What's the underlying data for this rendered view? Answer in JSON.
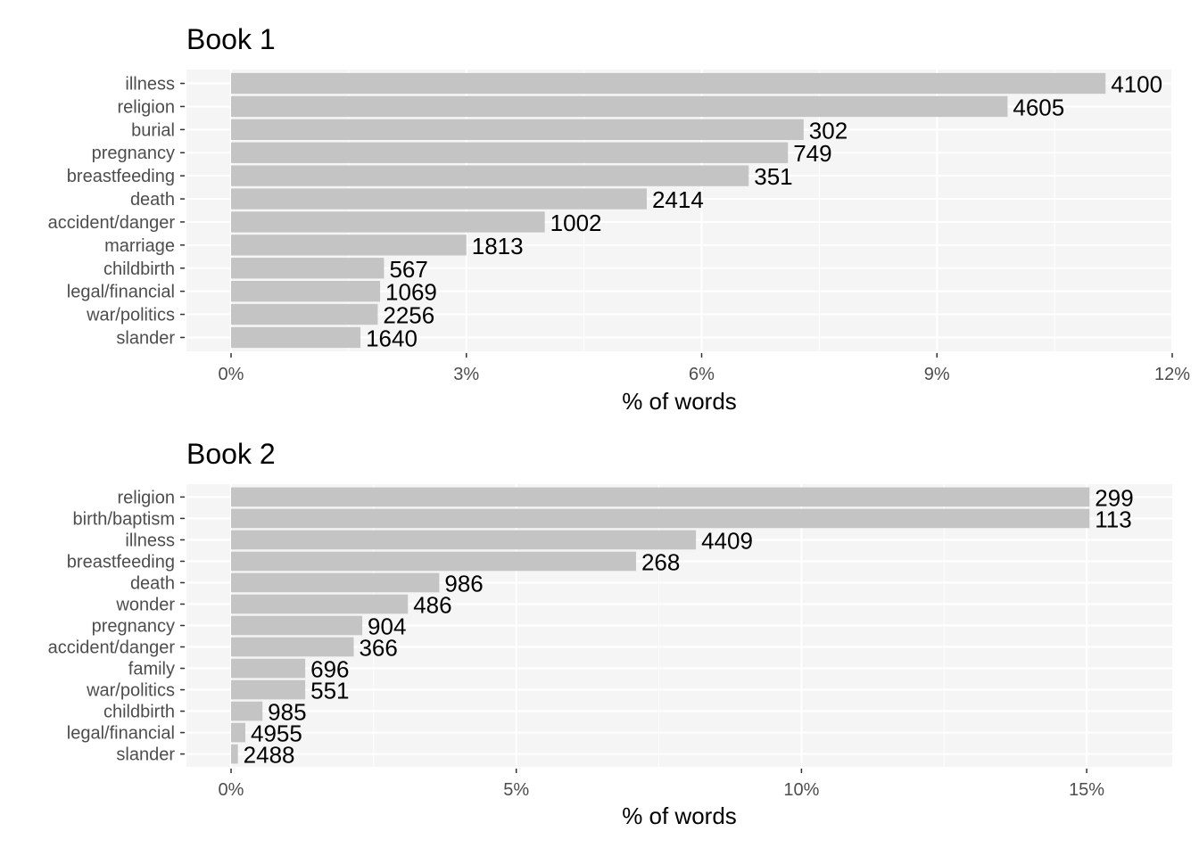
{
  "colors": {
    "bar": "#c4c4c4",
    "panel": "#f5f5f5",
    "grid": "#ffffff",
    "text": "#000000",
    "axis_text": "#4d4d4d"
  },
  "chart_data": [
    {
      "type": "bar",
      "orientation": "horizontal",
      "title": "Book 1",
      "xlabel": "% of words",
      "ylabel": "",
      "xlim": [
        0,
        12
      ],
      "ticks": [
        0,
        3,
        6,
        9,
        12
      ],
      "tick_labels": [
        "0%",
        "3%",
        "6%",
        "9%",
        "12%"
      ],
      "grid": true,
      "categories": [
        "illness",
        "religion",
        "burial",
        "pregnancy",
        "breastfeeding",
        "death",
        "accident/danger",
        "marriage",
        "childbirth",
        "legal/financial",
        "war/politics",
        "slander"
      ],
      "values": [
        11.15,
        9.9,
        7.3,
        7.1,
        6.6,
        5.3,
        4.0,
        3.0,
        1.95,
        1.9,
        1.87,
        1.65
      ],
      "labels": [
        "4100",
        "4605",
        "302",
        "749",
        "351",
        "2414",
        "1002",
        "1813",
        "567",
        "1069",
        "2256",
        "1640"
      ]
    },
    {
      "type": "bar",
      "orientation": "horizontal",
      "title": "Book 2",
      "xlabel": "% of words",
      "ylabel": "",
      "xlim": [
        0,
        16.5
      ],
      "ticks": [
        0,
        5,
        10,
        15
      ],
      "tick_labels": [
        "0%",
        "5%",
        "10%",
        "15%"
      ],
      "grid": true,
      "categories": [
        "religion",
        "birth/baptism",
        "illness",
        "breastfeeding",
        "death",
        "wonder",
        "pregnancy",
        "accident/danger",
        "family",
        "war/politics",
        "childbirth",
        "legal/financial",
        "slander"
      ],
      "values": [
        15.05,
        15.05,
        8.15,
        7.1,
        3.65,
        3.1,
        2.3,
        2.15,
        1.3,
        1.3,
        0.55,
        0.25,
        0.12
      ],
      "labels": [
        "299",
        "113",
        "4409",
        "268",
        "986",
        "486",
        "904",
        "366",
        "696",
        "551",
        "985",
        "4955",
        "2488"
      ]
    }
  ]
}
